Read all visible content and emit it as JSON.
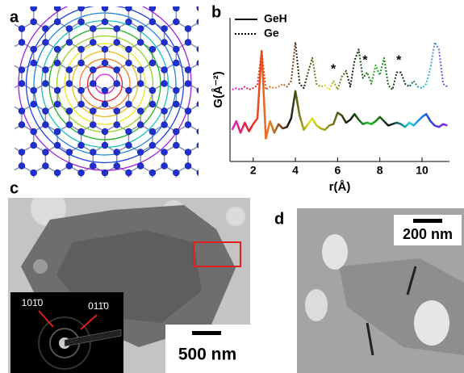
{
  "panel_labels": [
    "a",
    "b",
    "c",
    "d"
  ],
  "chart_data": {
    "type": "line",
    "x": [
      1.0,
      1.2,
      1.4,
      1.6,
      1.8,
      2.0,
      2.2,
      2.4,
      2.6,
      2.8,
      3.0,
      3.2,
      3.4,
      3.6,
      3.8,
      4.0,
      4.2,
      4.4,
      4.6,
      4.8,
      5.0,
      5.2,
      5.4,
      5.6,
      5.8,
      6.0,
      6.2,
      6.4,
      6.6,
      6.8,
      7.0,
      7.2,
      7.4,
      7.6,
      7.8,
      8.0,
      8.2,
      8.4,
      8.6,
      8.8,
      9.0,
      9.2,
      9.4,
      9.6,
      9.8,
      10.0,
      10.2,
      10.4,
      10.6,
      10.8,
      11.0,
      11.2
    ],
    "series": [
      {
        "name": "GeH",
        "style": "solid",
        "colors": [
          "#e020e0",
          "#e02020",
          "#f08020",
          "#111111",
          "#e8e820",
          "#888820",
          "#111111",
          "#20c020",
          "#111111",
          "#20d0e0",
          "#2040e0",
          "#a020e0"
        ],
        "values": [
          2.2,
          2.8,
          2.0,
          2.7,
          2.1,
          2.6,
          3.0,
          7.7,
          1.6,
          2.8,
          2.0,
          2.6,
          2.3,
          2.4,
          3.0,
          4.9,
          3.2,
          2.2,
          2.6,
          3.0,
          2.5,
          2.3,
          2.2,
          2.5,
          2.6,
          3.4,
          3.2,
          2.7,
          2.9,
          3.3,
          2.9,
          2.6,
          2.7,
          2.6,
          2.8,
          3.1,
          2.8,
          2.5,
          2.6,
          2.7,
          2.6,
          2.4,
          2.7,
          2.5,
          2.8,
          3.1,
          3.3,
          2.8,
          2.5,
          2.4,
          2.6,
          2.5
        ]
      },
      {
        "name": "Ge",
        "style": "dotted",
        "colors": [
          "#e020e0",
          "#e02020",
          "#f08020",
          "#111111",
          "#e8e820",
          "#111111",
          "#20c020",
          "#111111",
          "#20d0e0",
          "#a020e0"
        ],
        "values": [
          5.0,
          5.1,
          5.0,
          5.2,
          5.0,
          5.1,
          5.3,
          7.7,
          5.0,
          5.2,
          5.1,
          5.2,
          5.4,
          5.2,
          5.6,
          8.3,
          5.4,
          5.1,
          6.2,
          7.2,
          5.4,
          5.2,
          5.3,
          5.0,
          5.6,
          5.0,
          5.9,
          6.3,
          5.2,
          7.0,
          7.8,
          5.8,
          6.2,
          5.4,
          6.7,
          6.0,
          7.2,
          5.3,
          5.0,
          6.2,
          6.2,
          5.4,
          5.2,
          5.6,
          5.2,
          5.1,
          5.4,
          6.5,
          8.3,
          7.8,
          5.4,
          5.2
        ]
      }
    ],
    "annotations": [
      {
        "text": "*",
        "x": 5.8,
        "y": 6.4
      },
      {
        "text": "*",
        "x": 7.3,
        "y": 7.0
      },
      {
        "text": "*",
        "x": 8.9,
        "y": 7.0
      }
    ],
    "xlabel": "r(Å)",
    "ylabel": "G(Å⁻²)",
    "xlim": [
      0.9,
      11.3
    ],
    "xticks": [
      2,
      4,
      6,
      8,
      10
    ],
    "ylim": [
      0,
      10
    ],
    "legend": "top-left"
  },
  "panel_c": {
    "scale_bar": "500 nm",
    "inset_labels": [
      "101̄0",
      "011̄0"
    ]
  },
  "panel_d": {
    "scale_bar": "200 nm"
  }
}
